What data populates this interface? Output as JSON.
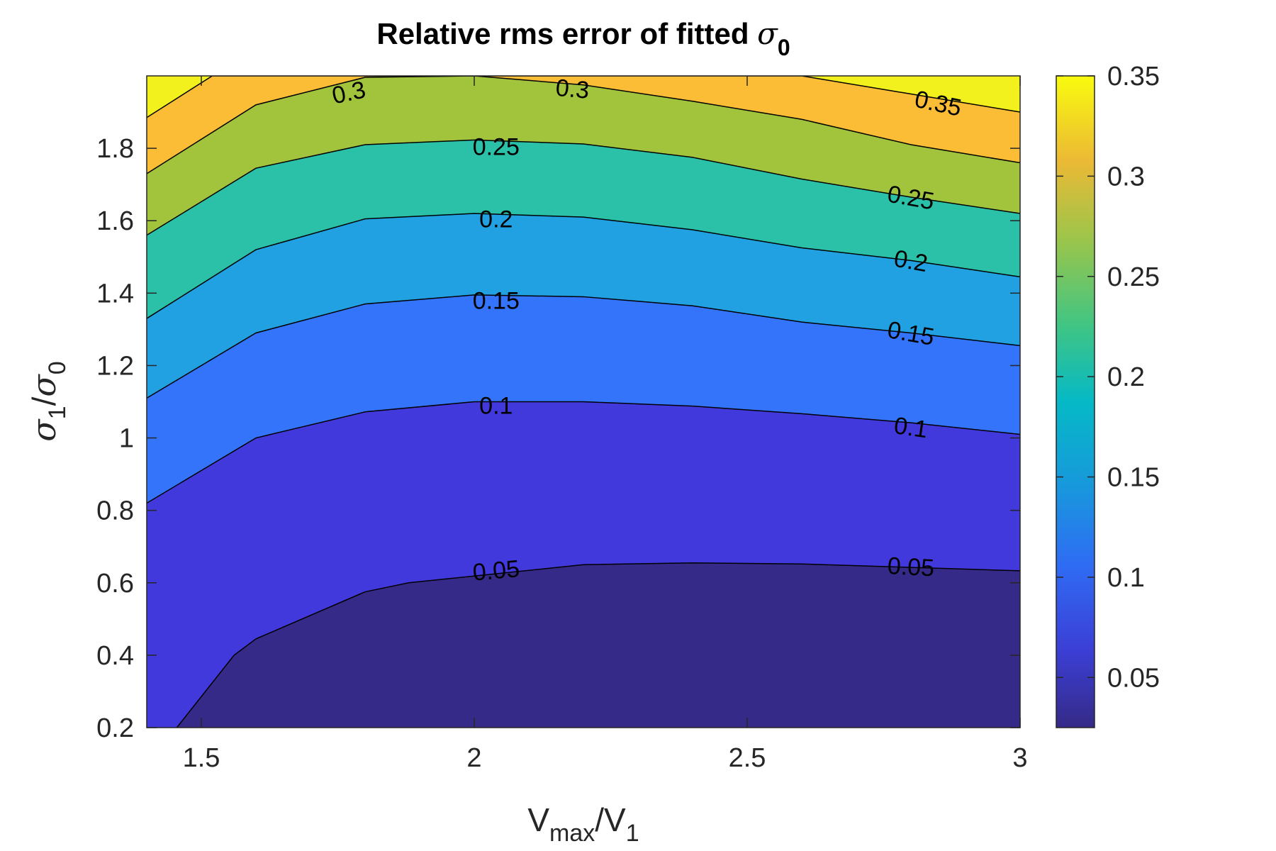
{
  "chart_data": {
    "type": "contour",
    "title": {
      "text": "Relative rms error of fitted ",
      "symbol": "σ",
      "subscript": "0"
    },
    "xlabel": {
      "main": "V",
      "sub1": "max",
      "slash": "/V",
      "sub2": "1"
    },
    "ylabel": {
      "s1": "σ",
      "sub1": "1",
      "slash": "/",
      "s2": "σ",
      "sub2": "0"
    },
    "xlim": [
      1.4,
      3.0
    ],
    "ylim": [
      0.2,
      2.0
    ],
    "x_ticks": [
      "1.5",
      "2",
      "2.5",
      "3"
    ],
    "y_ticks": [
      "0.2",
      "0.4",
      "0.6",
      "0.8",
      "1",
      "1.2",
      "1.4",
      "1.6",
      "1.8"
    ],
    "colorbar": {
      "range": [
        0.025,
        0.35
      ],
      "ticks": [
        "0.05",
        "0.1",
        "0.15",
        "0.2",
        "0.25",
        "0.3",
        "0.35"
      ],
      "colormap": "parula"
    },
    "levels": [
      0.05,
      0.1,
      0.15,
      0.2,
      0.25,
      0.3,
      0.35
    ],
    "fill_colors": [
      "#352a87",
      "#4239dc",
      "#3474fa",
      "#22a1e2",
      "#2ac1a8",
      "#a2c43c",
      "#fbbc36",
      "#f2f11e"
    ],
    "contours": [
      {
        "level": 0.05,
        "x": [
          1.455,
          1.56,
          1.6,
          1.8,
          1.88,
          2.2,
          2.4,
          2.6,
          3.0
        ],
        "y": [
          0.2,
          0.4,
          0.445,
          0.575,
          0.6,
          0.65,
          0.655,
          0.652,
          0.633
        ]
      },
      {
        "level": 0.1,
        "x": [
          1.4,
          1.6,
          1.8,
          2.0,
          2.2,
          2.4,
          2.6,
          2.8,
          3.0
        ],
        "y": [
          0.82,
          1.0,
          1.072,
          1.1,
          1.1,
          1.088,
          1.067,
          1.042,
          1.01
        ]
      },
      {
        "level": 0.15,
        "x": [
          1.4,
          1.6,
          1.8,
          2.0,
          2.2,
          2.4,
          2.6,
          2.8,
          3.0
        ],
        "y": [
          1.11,
          1.29,
          1.37,
          1.395,
          1.39,
          1.365,
          1.32,
          1.29,
          1.255
        ]
      },
      {
        "level": 0.2,
        "x": [
          1.4,
          1.6,
          1.8,
          2.0,
          2.2,
          2.4,
          2.6,
          2.8,
          3.0
        ],
        "y": [
          1.33,
          1.52,
          1.605,
          1.62,
          1.61,
          1.575,
          1.525,
          1.49,
          1.445
        ]
      },
      {
        "level": 0.25,
        "x": [
          1.4,
          1.6,
          1.8,
          2.0,
          2.2,
          2.4,
          2.6,
          2.8,
          3.0
        ],
        "y": [
          1.56,
          1.745,
          1.81,
          1.823,
          1.812,
          1.775,
          1.715,
          1.665,
          1.62
        ]
      },
      {
        "level": 0.3,
        "x": [
          1.4,
          1.6,
          1.8,
          2.0,
          2.2,
          2.4,
          2.6,
          2.8,
          3.0
        ],
        "y": [
          1.73,
          1.92,
          1.996,
          2.0,
          1.975,
          1.93,
          1.88,
          1.81,
          1.76
        ]
      },
      {
        "level": 0.35,
        "x": [
          1.4,
          1.52,
          2.6,
          2.8,
          3.0
        ],
        "y": [
          1.885,
          2.0,
          2.0,
          1.95,
          1.9
        ]
      }
    ],
    "contour_labels": [
      {
        "text": "0.3",
        "x": 1.77,
        "y": 1.955,
        "angle": -12
      },
      {
        "text": "0.3",
        "x": 2.18,
        "y": 1.965,
        "angle": 5
      },
      {
        "text": "0.35",
        "x": 2.85,
        "y": 1.925,
        "angle": 12
      },
      {
        "text": "0.25",
        "x": 2.04,
        "y": 1.805,
        "angle": 0
      },
      {
        "text": "0.25",
        "x": 2.8,
        "y": 1.665,
        "angle": 10
      },
      {
        "text": "0.2",
        "x": 2.04,
        "y": 1.605,
        "angle": 0
      },
      {
        "text": "0.2",
        "x": 2.8,
        "y": 1.49,
        "angle": 10
      },
      {
        "text": "0.15",
        "x": 2.04,
        "y": 1.38,
        "angle": 0
      },
      {
        "text": "0.15",
        "x": 2.8,
        "y": 1.29,
        "angle": 10
      },
      {
        "text": "0.1",
        "x": 2.04,
        "y": 1.09,
        "angle": 0
      },
      {
        "text": "0.1",
        "x": 2.8,
        "y": 1.03,
        "angle": 8
      },
      {
        "text": "0.05",
        "x": 2.04,
        "y": 0.635,
        "angle": -5
      },
      {
        "text": "0.05",
        "x": 2.8,
        "y": 0.645,
        "angle": 3
      }
    ]
  }
}
